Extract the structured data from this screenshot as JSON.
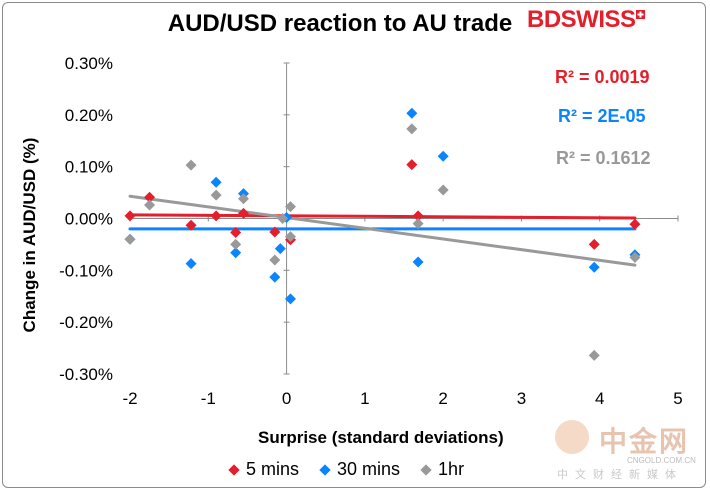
{
  "chart_data": {
    "type": "scatter",
    "title": "AUD/USD reaction to AU trade",
    "xlabel": "Surprise (standard deviations)",
    "ylabel": "Change in AUD/USD (%)",
    "xlim": [
      -2,
      5
    ],
    "ylim": [
      -0.3,
      0.3
    ],
    "x_ticks": [
      -2,
      -1,
      0,
      1,
      2,
      3,
      4,
      5
    ],
    "x_tick_labels": [
      "-2",
      "-1",
      "0",
      "1",
      "2",
      "3",
      "4",
      "5"
    ],
    "y_ticks": [
      0.3,
      0.2,
      0.1,
      0.0,
      -0.1,
      -0.2,
      -0.3
    ],
    "y_tick_labels": [
      "0.30%",
      "0.20%",
      "0.10%",
      "0.00%",
      "-0.10%",
      "-0.20%",
      "-0.30%"
    ],
    "series": [
      {
        "name": "5 mins",
        "color": "#e41f2b",
        "r2_label": "R² = 0.0019",
        "points": [
          [
            -2.0,
            0.005
          ],
          [
            -1.75,
            0.041
          ],
          [
            -1.22,
            -0.013
          ],
          [
            -0.9,
            0.005
          ],
          [
            -0.65,
            -0.027
          ],
          [
            -0.55,
            0.01
          ],
          [
            -0.15,
            -0.026
          ],
          [
            0.05,
            -0.041
          ],
          [
            1.6,
            0.104
          ],
          [
            1.68,
            0.005
          ],
          [
            3.93,
            -0.05
          ],
          [
            4.45,
            -0.011
          ]
        ],
        "trend": [
          [
            -2.0,
            0.007
          ],
          [
            4.45,
            0.001
          ]
        ]
      },
      {
        "name": "30 mins",
        "color": "#0a84ff",
        "r2_label": "R² = 2E-05",
        "points": [
          [
            -2.0,
            -0.04
          ],
          [
            -1.22,
            -0.087
          ],
          [
            -0.9,
            0.07
          ],
          [
            -0.65,
            -0.066
          ],
          [
            -0.55,
            0.048
          ],
          [
            -0.15,
            -0.113
          ],
          [
            -0.08,
            -0.058
          ],
          [
            0.0,
            0.002
          ],
          [
            0.05,
            -0.155
          ],
          [
            1.6,
            0.203
          ],
          [
            1.68,
            -0.084
          ],
          [
            2.0,
            0.12
          ],
          [
            3.93,
            -0.094
          ],
          [
            4.45,
            -0.07
          ]
        ],
        "trend": [
          [
            -2.0,
            -0.02
          ],
          [
            4.45,
            -0.02
          ]
        ]
      },
      {
        "name": "1hr",
        "color": "#999999",
        "r2_label": "R² = 0.1612",
        "points": [
          [
            -2.0,
            -0.04
          ],
          [
            -1.75,
            0.026
          ],
          [
            -1.22,
            0.103
          ],
          [
            -0.9,
            0.045
          ],
          [
            -0.65,
            -0.05
          ],
          [
            -0.55,
            0.038
          ],
          [
            -0.15,
            -0.08
          ],
          [
            -0.05,
            0.0
          ],
          [
            0.05,
            0.023
          ],
          [
            0.05,
            -0.035
          ],
          [
            1.6,
            0.173
          ],
          [
            1.68,
            -0.01
          ],
          [
            2.0,
            0.055
          ],
          [
            3.93,
            -0.264
          ],
          [
            4.45,
            -0.075
          ]
        ],
        "trend": [
          [
            -2.0,
            0.043
          ],
          [
            4.45,
            -0.09
          ]
        ]
      }
    ]
  },
  "brand": {
    "name": "BDSWISS",
    "color": "#e41f2b"
  },
  "watermark": {
    "cn": "中金网",
    "domain": "CNGOLD.COM.CN",
    "sub": "中文财经新媒体"
  }
}
